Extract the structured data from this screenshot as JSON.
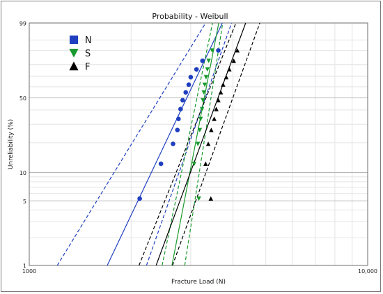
{
  "chart_data": {
    "type": "scatter",
    "title": "Probability - Weibull",
    "xlabel": "Fracture Load (N)",
    "ylabel": "Unreliability (%)",
    "x_scale": "log",
    "y_scale": "weibull",
    "xlim": [
      1000,
      10000
    ],
    "ylim": [
      1,
      99
    ],
    "x_ticks": [
      {
        "value": 1000,
        "label": "1000"
      },
      {
        "value": 10000,
        "label": "10,000"
      }
    ],
    "y_ticks": [
      {
        "value": 1,
        "label": "1"
      },
      {
        "value": 5,
        "label": "5"
      },
      {
        "value": 10,
        "label": "10"
      },
      {
        "value": 50,
        "label": "50"
      },
      {
        "value": 99,
        "label": "99"
      }
    ],
    "grid": true,
    "legend_position": "top-left",
    "series": [
      {
        "name": "N",
        "color": "#1f3fbf",
        "marker": "circle",
        "points": [
          {
            "x": 2120,
            "y": 5.3
          },
          {
            "x": 2450,
            "y": 12.3
          },
          {
            "x": 2660,
            "y": 19.5
          },
          {
            "x": 2740,
            "y": 26.5
          },
          {
            "x": 2760,
            "y": 33.5
          },
          {
            "x": 2800,
            "y": 40.7
          },
          {
            "x": 2840,
            "y": 48.0
          },
          {
            "x": 2900,
            "y": 55.0
          },
          {
            "x": 2960,
            "y": 62.0
          },
          {
            "x": 3000,
            "y": 69.0
          },
          {
            "x": 3120,
            "y": 76.0
          },
          {
            "x": 3250,
            "y": 83.0
          },
          {
            "x": 3620,
            "y": 90.0
          }
        ],
        "fit_line": [
          {
            "x": 1700,
            "y": 1
          },
          {
            "x": 3720,
            "y": 99
          }
        ],
        "confidence_bounds": [
          [
            {
              "x": 1210,
              "y": 1
            },
            {
              "x": 3320,
              "y": 99
            }
          ],
          [
            {
              "x": 2220,
              "y": 1
            },
            {
              "x": 3960,
              "y": 99
            }
          ]
        ]
      },
      {
        "name": "S",
        "color": "#1a9a2e",
        "marker": "triangle-down",
        "points": [
          {
            "x": 3170,
            "y": 5.3
          },
          {
            "x": 3070,
            "y": 12.3
          },
          {
            "x": 3150,
            "y": 19.5
          },
          {
            "x": 3190,
            "y": 26.5
          },
          {
            "x": 3210,
            "y": 33.5
          },
          {
            "x": 3240,
            "y": 40.7
          },
          {
            "x": 3260,
            "y": 48.0
          },
          {
            "x": 3280,
            "y": 55.0
          },
          {
            "x": 3300,
            "y": 62.0
          },
          {
            "x": 3330,
            "y": 69.0
          },
          {
            "x": 3360,
            "y": 76.0
          },
          {
            "x": 3390,
            "y": 83.0
          },
          {
            "x": 3470,
            "y": 90.0
          }
        ],
        "fit_line": [
          {
            "x": 2640,
            "y": 1
          },
          {
            "x": 3630,
            "y": 99
          }
        ],
        "confidence_bounds": [
          [
            {
              "x": 2470,
              "y": 1
            },
            {
              "x": 3480,
              "y": 99
            }
          ],
          [
            {
              "x": 2880,
              "y": 1
            },
            {
              "x": 3730,
              "y": 99
            }
          ]
        ]
      },
      {
        "name": "F",
        "color": "#000000",
        "marker": "triangle-up",
        "points": [
          {
            "x": 3440,
            "y": 5.3
          },
          {
            "x": 3320,
            "y": 12.3
          },
          {
            "x": 3380,
            "y": 19.5
          },
          {
            "x": 3450,
            "y": 26.5
          },
          {
            "x": 3520,
            "y": 33.5
          },
          {
            "x": 3570,
            "y": 40.7
          },
          {
            "x": 3620,
            "y": 48.0
          },
          {
            "x": 3680,
            "y": 55.0
          },
          {
            "x": 3740,
            "y": 62.0
          },
          {
            "x": 3820,
            "y": 69.0
          },
          {
            "x": 3900,
            "y": 76.0
          },
          {
            "x": 4020,
            "y": 83.0
          },
          {
            "x": 4120,
            "y": 90.0
          }
        ],
        "fit_line": [
          {
            "x": 2370,
            "y": 1
          },
          {
            "x": 4360,
            "y": 99
          }
        ],
        "confidence_bounds": [
          [
            {
              "x": 2110,
              "y": 1
            },
            {
              "x": 4080,
              "y": 99
            }
          ],
          [
            {
              "x": 2650,
              "y": 1
            },
            {
              "x": 4800,
              "y": 99
            }
          ]
        ]
      }
    ]
  }
}
